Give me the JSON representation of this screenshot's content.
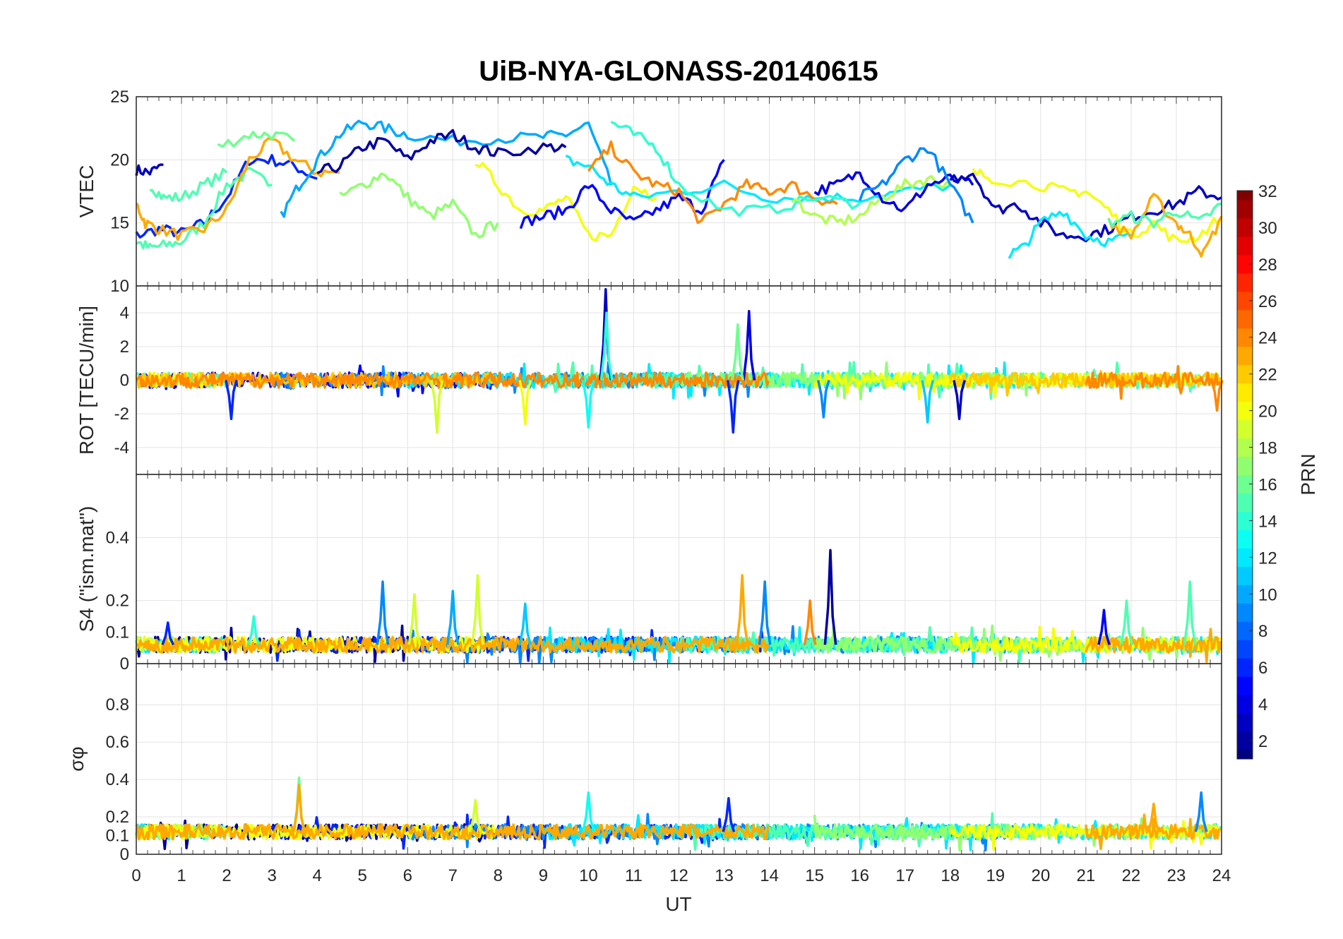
{
  "chart_data": {
    "type": "line",
    "title": "UiB-NYA-GLONASS-20140615",
    "xlabel": "UT",
    "xlim": [
      0,
      24
    ],
    "xticks": [
      0,
      1,
      2,
      3,
      4,
      5,
      6,
      7,
      8,
      9,
      10,
      11,
      12,
      13,
      14,
      15,
      16,
      17,
      18,
      19,
      20,
      21,
      22,
      23,
      24
    ],
    "colorbar": {
      "label": "PRN",
      "range": [
        1,
        32
      ],
      "ticks": [
        2,
        4,
        6,
        8,
        10,
        12,
        14,
        16,
        18,
        20,
        22,
        24,
        26,
        28,
        30,
        32
      ],
      "colormap": "jet"
    },
    "grid": true,
    "panels": [
      {
        "id": "vtec",
        "ylabel": "VTEC",
        "ylim": [
          10,
          25
        ],
        "yticks": [
          10,
          15,
          20,
          25
        ],
        "series": [
          {
            "prn": 3,
            "x": [
              0,
              0.3,
              0.6
            ],
            "y": [
              19.2,
              19,
              19.6
            ]
          },
          {
            "prn": 6,
            "x": [
              0,
              0.5,
              1,
              1.5,
              2,
              2.5,
              3,
              3.5,
              4
            ],
            "y": [
              14,
              14.5,
              14.2,
              15,
              17,
              20,
              20,
              19.5,
              18.5
            ]
          },
          {
            "prn": 15,
            "x": [
              0,
              0.3,
              0.6,
              1,
              1.5,
              2,
              2.5,
              3
            ],
            "y": [
              13.5,
              13,
              13.2,
              13.5,
              15,
              18,
              19,
              18
            ]
          },
          {
            "prn": 15,
            "x": [
              0.3,
              0.6,
              1,
              1.5,
              2
            ],
            "y": [
              18,
              17,
              17,
              18,
              19
            ]
          },
          {
            "prn": 23,
            "x": [
              0,
              0.2,
              0.5,
              1,
              1.5,
              2,
              2.5,
              3,
              3.5,
              4,
              4.5
            ],
            "y": [
              16.5,
              15,
              14.5,
              14,
              14.5,
              16,
              20,
              21.5,
              20,
              19,
              19
            ]
          },
          {
            "prn": 16,
            "x": [
              1.8,
              2.5,
              3,
              3.5
            ],
            "y": [
              21,
              22,
              22,
              21.5
            ]
          },
          {
            "prn": 10,
            "x": [
              3.2,
              3.6,
              4,
              4.5,
              5,
              5.5,
              6,
              7,
              8,
              9,
              9.5,
              10,
              10.5
            ],
            "y": [
              15.5,
              18,
              20,
              22,
              23,
              22.5,
              22,
              21.5,
              21.7,
              21.8,
              22,
              22.8,
              18
            ]
          },
          {
            "prn": 2,
            "x": [
              4,
              4.5,
              5,
              5.5,
              6,
              6.5,
              7,
              7.5,
              8,
              9,
              9.5
            ],
            "y": [
              19,
              19.5,
              21,
              21.5,
              20,
              21.5,
              22,
              21,
              20.5,
              21,
              21
            ]
          },
          {
            "prn": 17,
            "x": [
              4.5,
              5,
              5.5,
              6,
              6.5,
              7,
              7.5,
              8
            ],
            "y": [
              17,
              18,
              19,
              17,
              15.5,
              16.5,
              14,
              15
            ]
          },
          {
            "prn": 20,
            "x": [
              7.5,
              8,
              8.5,
              9,
              9.5,
              10,
              10.5,
              11,
              11.5
            ],
            "y": [
              20,
              18,
              16,
              16,
              17,
              14,
              14,
              18,
              17
            ]
          },
          {
            "prn": 5,
            "x": [
              8.5,
              9,
              9.5,
              10,
              10.5,
              11,
              11.5,
              12,
              12.5,
              13
            ],
            "y": [
              15,
              15.5,
              16,
              18,
              16,
              15,
              16,
              17,
              16,
              20
            ]
          },
          {
            "prn": 12,
            "x": [
              9.5,
              10,
              10.5,
              11,
              12,
              13,
              14,
              15,
              16,
              17,
              18
            ],
            "y": [
              20,
              19.5,
              18,
              17,
              17.5,
              18,
              17,
              17,
              17,
              17.5,
              18
            ]
          },
          {
            "prn": 24,
            "x": [
              10,
              10.5,
              11,
              11.5,
              12,
              12.5,
              13,
              13.5,
              14,
              14.5,
              15,
              15.5
            ],
            "y": [
              19,
              21,
              19,
              18,
              17.5,
              15,
              16.5,
              18,
              17.5,
              18,
              17,
              16.5
            ]
          },
          {
            "prn": 14,
            "x": [
              10.5,
              11,
              11.5,
              12,
              13,
              14,
              15,
              16
            ],
            "y": [
              23,
              22,
              21,
              18,
              16,
              16,
              17,
              16.5
            ]
          },
          {
            "prn": 18,
            "x": [
              14.5,
              15,
              15.5,
              16,
              16.5,
              17,
              17.5,
              18
            ],
            "y": [
              17,
              15.5,
              15,
              15.5,
              17,
              18,
              18.5,
              18
            ]
          },
          {
            "prn": 4,
            "x": [
              15,
              15.5,
              16,
              16.5,
              17,
              17.5,
              18,
              18.5
            ],
            "y": [
              17.5,
              18,
              19,
              17,
              16,
              18,
              18.5,
              18
            ]
          },
          {
            "prn": 9,
            "x": [
              16,
              16.5,
              17,
              17.5,
              18,
              18.5
            ],
            "y": [
              17,
              18,
              20,
              21,
              18,
              15
            ]
          },
          {
            "prn": 3,
            "x": [
              18,
              18.5,
              19,
              19.5,
              20,
              20.5,
              21,
              21.5,
              22,
              22.5,
              23,
              23.5,
              24
            ],
            "y": [
              18.5,
              19,
              16,
              16.5,
              15,
              14,
              14,
              14.5,
              15.5,
              16,
              16.5,
              17.5,
              17
            ]
          },
          {
            "prn": 12,
            "x": [
              19.3,
              19.6,
              20,
              20.5,
              21,
              21.5,
              22
            ],
            "y": [
              12.5,
              13,
              15,
              16,
              14,
              13.5,
              14
            ]
          },
          {
            "prn": 20,
            "x": [
              18.5,
              19,
              20,
              20.5,
              21,
              21.5,
              22,
              22.5,
              23,
              23.5,
              24
            ],
            "y": [
              19,
              18.5,
              18,
              17.5,
              17.5,
              16,
              14,
              15,
              13.5,
              14,
              15.5
            ]
          },
          {
            "prn": 23,
            "x": [
              21.5,
              22,
              22.5,
              23,
              23.3,
              23.6,
              24
            ],
            "y": [
              15,
              14,
              17,
              15,
              14,
              12.5,
              15.5
            ]
          },
          {
            "prn": 15,
            "x": [
              21.5,
              22,
              22.5,
              23,
              23.5,
              24
            ],
            "y": [
              15,
              15.5,
              15,
              16,
              15,
              16.5
            ]
          }
        ]
      },
      {
        "id": "rot",
        "ylabel": "ROT [TECU/min]",
        "ylim": [
          -5.6,
          5.6
        ],
        "yticks": [
          -4,
          -2,
          0,
          2,
          4
        ],
        "baseline": {
          "level": 0,
          "spread": 0.45,
          "prns": [
            5,
            9,
            12,
            15,
            17,
            20,
            22,
            24
          ]
        },
        "spikes": [
          {
            "x": 10.38,
            "y": 5.4,
            "prn": 3
          },
          {
            "x": 10.4,
            "y": 4.0,
            "prn": 14
          },
          {
            "x": 13.55,
            "y": 4.1,
            "prn": 4
          },
          {
            "x": 13.3,
            "y": 3.3,
            "prn": 16
          },
          {
            "x": 13.2,
            "y": -3.1,
            "prn": 6
          },
          {
            "x": 6.65,
            "y": -3.1,
            "prn": 19
          },
          {
            "x": 10.0,
            "y": -2.8,
            "prn": 13
          },
          {
            "x": 2.1,
            "y": -2.3,
            "prn": 6
          },
          {
            "x": 18.2,
            "y": -2.3,
            "prn": 3
          },
          {
            "x": 17.5,
            "y": -2.5,
            "prn": 11
          },
          {
            "x": 8.6,
            "y": -2.6,
            "prn": 20
          },
          {
            "x": 15.2,
            "y": -2.2,
            "prn": 9
          },
          {
            "x": 23.9,
            "y": -1.8,
            "prn": 24
          }
        ]
      },
      {
        "id": "s4",
        "ylabel": "S4 (\"ism.mat\")",
        "ylim": [
          0,
          0.6
        ],
        "yticks": [
          0,
          0.1,
          0.2,
          0.4
        ],
        "baseline": {
          "level": 0.06,
          "spread": 0.025,
          "prns": [
            2,
            6,
            9,
            12,
            15,
            17,
            20,
            23
          ]
        },
        "spikes": [
          {
            "x": 5.45,
            "y": 0.26,
            "prn": 9
          },
          {
            "x": 6.15,
            "y": 0.22,
            "prn": 19
          },
          {
            "x": 7.0,
            "y": 0.23,
            "prn": 10
          },
          {
            "x": 7.55,
            "y": 0.28,
            "prn": 19
          },
          {
            "x": 8.6,
            "y": 0.19,
            "prn": 11
          },
          {
            "x": 13.4,
            "y": 0.28,
            "prn": 23
          },
          {
            "x": 13.9,
            "y": 0.26,
            "prn": 9
          },
          {
            "x": 14.9,
            "y": 0.2,
            "prn": 24
          },
          {
            "x": 15.35,
            "y": 0.36,
            "prn": 2
          },
          {
            "x": 21.4,
            "y": 0.17,
            "prn": 5
          },
          {
            "x": 21.9,
            "y": 0.2,
            "prn": 15
          },
          {
            "x": 23.3,
            "y": 0.26,
            "prn": 15
          },
          {
            "x": 0.7,
            "y": 0.13,
            "prn": 6
          },
          {
            "x": 2.6,
            "y": 0.15,
            "prn": 14
          }
        ]
      },
      {
        "id": "sigma",
        "ylabel": "σφ",
        "ylim": [
          0,
          1.02
        ],
        "yticks": [
          0,
          0.1,
          0.2,
          0.4,
          0.6,
          0.8
        ],
        "baseline": {
          "level": 0.12,
          "spread": 0.04,
          "prns": [
            2,
            6,
            9,
            12,
            15,
            17,
            20,
            23
          ]
        },
        "spikes": [
          {
            "x": 3.6,
            "y": 0.41,
            "prn": 16
          },
          {
            "x": 3.6,
            "y": 0.37,
            "prn": 23
          },
          {
            "x": 10.0,
            "y": 0.33,
            "prn": 13
          },
          {
            "x": 13.1,
            "y": 0.3,
            "prn": 6
          },
          {
            "x": 7.5,
            "y": 0.29,
            "prn": 19
          },
          {
            "x": 22.5,
            "y": 0.27,
            "prn": 23
          },
          {
            "x": 23.55,
            "y": 0.33,
            "prn": 9
          }
        ]
      }
    ]
  }
}
